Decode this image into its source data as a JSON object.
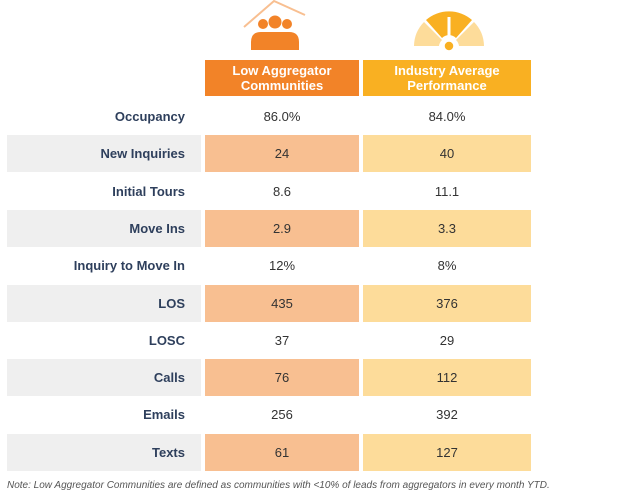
{
  "chart_data": {
    "type": "table",
    "columns": [
      "Low Aggregator Communities",
      "Industry Average Performance"
    ],
    "rows": [
      {
        "label": "Occupancy",
        "values": [
          "86.0%",
          "84.0%"
        ]
      },
      {
        "label": "New Inquiries",
        "values": [
          "24",
          "40"
        ]
      },
      {
        "label": "Initial Tours",
        "values": [
          "8.6",
          "11.1"
        ]
      },
      {
        "label": "Move Ins",
        "values": [
          "2.9",
          "3.3"
        ]
      },
      {
        "label": "Inquiry to Move In",
        "values": [
          "12%",
          "8%"
        ]
      },
      {
        "label": "LOS",
        "values": [
          "435",
          "376"
        ]
      },
      {
        "label": "LOSC",
        "values": [
          "37",
          "29"
        ]
      },
      {
        "label": "Calls",
        "values": [
          "76",
          "112"
        ]
      },
      {
        "label": "Emails",
        "values": [
          "256",
          "392"
        ]
      },
      {
        "label": "Texts",
        "values": [
          "61",
          "127"
        ]
      }
    ],
    "note": "Note: Low Aggregator Communities are defined as communities with <10% of leads from aggregators in every month YTD."
  },
  "colors": {
    "low_header": "#F28328",
    "industry_header": "#F9B022",
    "low_shade": "#F8BF91",
    "industry_shade": "#FDDC9A"
  }
}
